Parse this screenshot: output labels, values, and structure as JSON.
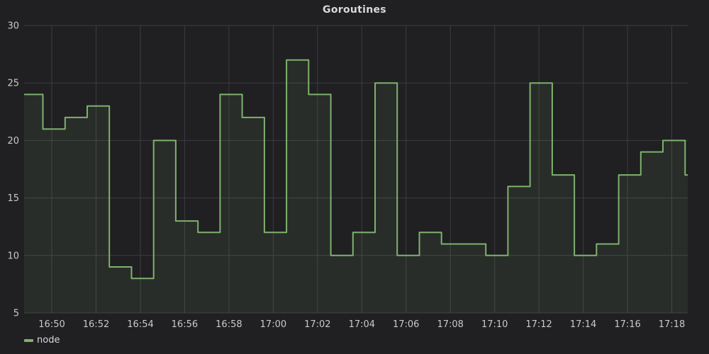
{
  "panel": {
    "title": "Goroutines"
  },
  "colors": {
    "background": "#201f22",
    "grid": "#3c3c40",
    "tick_text": "#c9cacc",
    "title_text": "#d8d9da",
    "legend_text": "#d8d9da",
    "series_green": "#7eb26d"
  },
  "chart_data": {
    "type": "line",
    "style": "step-after",
    "title": "Goroutines",
    "xlabel": "",
    "ylabel": "",
    "grid": true,
    "x_axis": {
      "range_min": [
        48.75,
        78.72
      ],
      "unit": "minutes since 16:00",
      "ticks": [
        {
          "t": 50,
          "label": "16:50"
        },
        {
          "t": 52,
          "label": "16:52"
        },
        {
          "t": 54,
          "label": "16:54"
        },
        {
          "t": 56,
          "label": "16:56"
        },
        {
          "t": 58,
          "label": "16:58"
        },
        {
          "t": 60,
          "label": "17:00"
        },
        {
          "t": 62,
          "label": "17:02"
        },
        {
          "t": 64,
          "label": "17:04"
        },
        {
          "t": 66,
          "label": "17:06"
        },
        {
          "t": 68,
          "label": "17:08"
        },
        {
          "t": 70,
          "label": "17:10"
        },
        {
          "t": 72,
          "label": "17:12"
        },
        {
          "t": 74,
          "label": "17:14"
        },
        {
          "t": 76,
          "label": "17:16"
        },
        {
          "t": 78,
          "label": "17:18"
        }
      ]
    },
    "y_axis": {
      "range": [
        5,
        30
      ],
      "ticks": [
        30,
        25,
        20,
        15,
        10,
        5
      ]
    },
    "series": [
      {
        "name": "node",
        "color": "#7eb26d",
        "fill_opacity": 0.1,
        "line_width": 2,
        "start_min": 48.6,
        "interval_min": 1,
        "values": [
          24,
          21,
          22,
          23,
          9,
          8,
          20,
          13,
          12,
          24,
          22,
          12,
          27,
          24,
          10,
          12,
          25,
          10,
          12,
          11,
          11,
          10,
          16,
          25,
          17,
          10,
          11,
          17,
          19,
          20,
          17
        ]
      }
    ],
    "legend": {
      "position": "bottom-left",
      "items": [
        {
          "label": "node",
          "color": "#7eb26d"
        }
      ]
    }
  }
}
